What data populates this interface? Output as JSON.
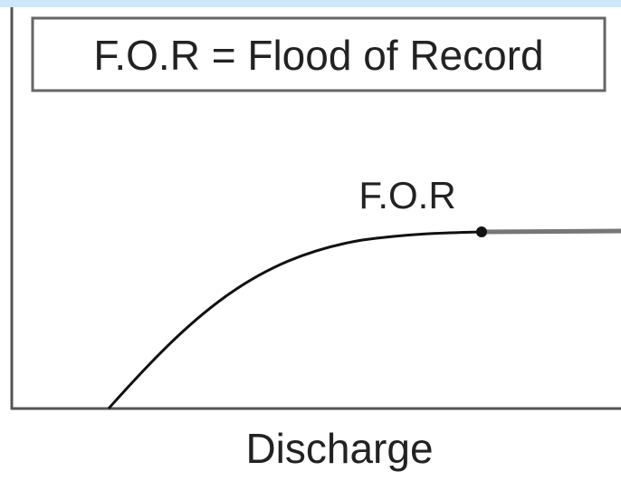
{
  "legend": {
    "text": "F.O.R = Flood of Record"
  },
  "annotation": {
    "label": "F.O.R"
  },
  "x_axis": {
    "label": "Discharge"
  }
}
